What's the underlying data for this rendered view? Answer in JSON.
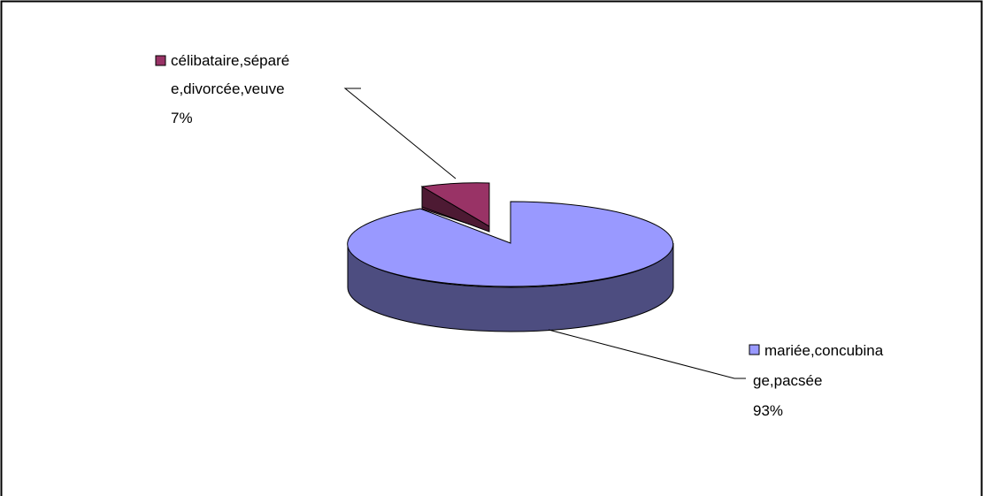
{
  "chart_data": {
    "type": "pie",
    "style": "3d-exploded",
    "slices": [
      {
        "label_lines": [
          "mariée,concubina",
          "ge,pacsée"
        ],
        "percent_label": "93%",
        "value": 93,
        "color": "#9999ff",
        "side_color": "#4d4d80"
      },
      {
        "label_lines": [
          "célibataire,séparé",
          "e,divorcée,veuve"
        ],
        "percent_label": "7%",
        "value": 7,
        "color": "#993366",
        "side_color": "#4d1a33"
      }
    ]
  }
}
